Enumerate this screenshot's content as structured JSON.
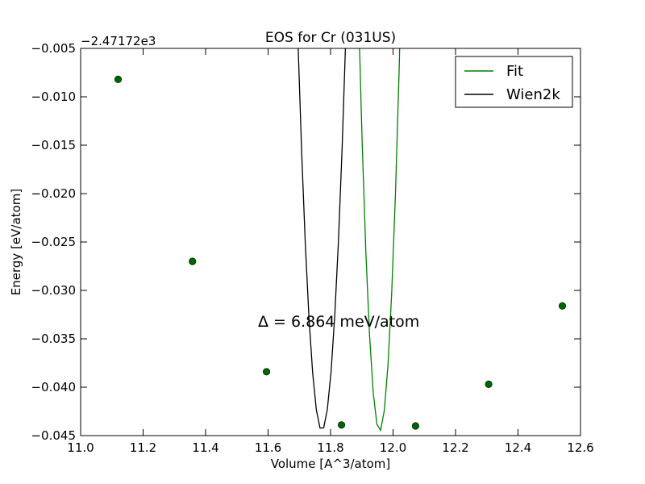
{
  "chart_data": {
    "type": "line",
    "title": "EOS for Cr (031US)",
    "xlabel": "Volume [A^3/atom]",
    "ylabel": "Energy [eV/atom]",
    "offset_label": "−2.47172e3",
    "annotation": "Δ = 6.864 meV/atom",
    "xlim": [
      11.0,
      12.6
    ],
    "ylim": [
      -0.045,
      -0.005
    ],
    "xticks": [
      11.0,
      11.2,
      11.4,
      11.6,
      11.8,
      12.0,
      12.2,
      12.4,
      12.6
    ],
    "xtick_labels": [
      "11.0",
      "11.2",
      "11.4",
      "11.6",
      "11.8",
      "12.0",
      "12.2",
      "12.4",
      "12.6"
    ],
    "yticks": [
      -0.045,
      -0.04,
      -0.035,
      -0.03,
      -0.025,
      -0.02,
      -0.015,
      -0.01,
      -0.005
    ],
    "ytick_labels": [
      "−0.045",
      "−0.040",
      "−0.035",
      "−0.030",
      "−0.025",
      "−0.020",
      "−0.015",
      "−0.010",
      "−0.005"
    ],
    "grid": false,
    "legend_placement": "top-right",
    "series": [
      {
        "name": "Fit",
        "color": "#008000",
        "style": "line+markers",
        "fit": {
          "a": 9.55,
          "x0": 11.957,
          "y0": -0.04455,
          "xrange": [
            11.12,
            12.54
          ]
        },
        "points": [
          {
            "x": 11.12,
            "y": -0.0082
          },
          {
            "x": 11.358,
            "y": -0.027
          },
          {
            "x": 11.595,
            "y": -0.0384
          },
          {
            "x": 11.835,
            "y": -0.0439
          },
          {
            "x": 12.072,
            "y": -0.044
          },
          {
            "x": 12.306,
            "y": -0.0397
          },
          {
            "x": 12.542,
            "y": -0.0316
          }
        ]
      },
      {
        "name": "Wien2k",
        "color": "#000000",
        "style": "line",
        "fit": {
          "a": 6.9,
          "x0": 11.772,
          "y0": -0.04445,
          "xrange": [
            11.12,
            12.53
          ]
        }
      }
    ]
  }
}
